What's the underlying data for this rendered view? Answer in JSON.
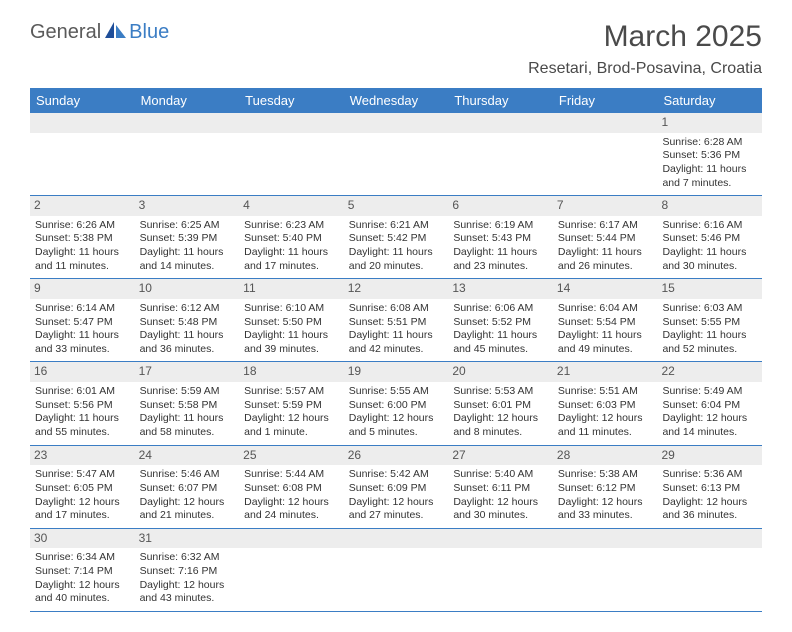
{
  "logo": {
    "text1": "General",
    "text2": "Blue"
  },
  "title": "March 2025",
  "location": "Resetari, Brod-Posavina, Croatia",
  "colors": {
    "header_bg": "#3b7dc4",
    "header_text": "#ffffff",
    "daynum_bg": "#ededed",
    "row_border": "#3b7dc4",
    "text": "#333333",
    "logo_gray": "#5a5a5a",
    "logo_blue": "#3b7dc4",
    "title_color": "#4a4a4a"
  },
  "typography": {
    "cell_fontsize": 10.5,
    "header_fontsize": 13,
    "title_fontsize": 30,
    "location_fontsize": 16
  },
  "dayNames": [
    "Sunday",
    "Monday",
    "Tuesday",
    "Wednesday",
    "Thursday",
    "Friday",
    "Saturday"
  ],
  "weeks": [
    [
      {
        "n": "",
        "sunrise": "",
        "sunset": "",
        "daylight": ""
      },
      {
        "n": "",
        "sunrise": "",
        "sunset": "",
        "daylight": ""
      },
      {
        "n": "",
        "sunrise": "",
        "sunset": "",
        "daylight": ""
      },
      {
        "n": "",
        "sunrise": "",
        "sunset": "",
        "daylight": ""
      },
      {
        "n": "",
        "sunrise": "",
        "sunset": "",
        "daylight": ""
      },
      {
        "n": "",
        "sunrise": "",
        "sunset": "",
        "daylight": ""
      },
      {
        "n": "1",
        "sunrise": "Sunrise: 6:28 AM",
        "sunset": "Sunset: 5:36 PM",
        "daylight": "Daylight: 11 hours and 7 minutes."
      }
    ],
    [
      {
        "n": "2",
        "sunrise": "Sunrise: 6:26 AM",
        "sunset": "Sunset: 5:38 PM",
        "daylight": "Daylight: 11 hours and 11 minutes."
      },
      {
        "n": "3",
        "sunrise": "Sunrise: 6:25 AM",
        "sunset": "Sunset: 5:39 PM",
        "daylight": "Daylight: 11 hours and 14 minutes."
      },
      {
        "n": "4",
        "sunrise": "Sunrise: 6:23 AM",
        "sunset": "Sunset: 5:40 PM",
        "daylight": "Daylight: 11 hours and 17 minutes."
      },
      {
        "n": "5",
        "sunrise": "Sunrise: 6:21 AM",
        "sunset": "Sunset: 5:42 PM",
        "daylight": "Daylight: 11 hours and 20 minutes."
      },
      {
        "n": "6",
        "sunrise": "Sunrise: 6:19 AM",
        "sunset": "Sunset: 5:43 PM",
        "daylight": "Daylight: 11 hours and 23 minutes."
      },
      {
        "n": "7",
        "sunrise": "Sunrise: 6:17 AM",
        "sunset": "Sunset: 5:44 PM",
        "daylight": "Daylight: 11 hours and 26 minutes."
      },
      {
        "n": "8",
        "sunrise": "Sunrise: 6:16 AM",
        "sunset": "Sunset: 5:46 PM",
        "daylight": "Daylight: 11 hours and 30 minutes."
      }
    ],
    [
      {
        "n": "9",
        "sunrise": "Sunrise: 6:14 AM",
        "sunset": "Sunset: 5:47 PM",
        "daylight": "Daylight: 11 hours and 33 minutes."
      },
      {
        "n": "10",
        "sunrise": "Sunrise: 6:12 AM",
        "sunset": "Sunset: 5:48 PM",
        "daylight": "Daylight: 11 hours and 36 minutes."
      },
      {
        "n": "11",
        "sunrise": "Sunrise: 6:10 AM",
        "sunset": "Sunset: 5:50 PM",
        "daylight": "Daylight: 11 hours and 39 minutes."
      },
      {
        "n": "12",
        "sunrise": "Sunrise: 6:08 AM",
        "sunset": "Sunset: 5:51 PM",
        "daylight": "Daylight: 11 hours and 42 minutes."
      },
      {
        "n": "13",
        "sunrise": "Sunrise: 6:06 AM",
        "sunset": "Sunset: 5:52 PM",
        "daylight": "Daylight: 11 hours and 45 minutes."
      },
      {
        "n": "14",
        "sunrise": "Sunrise: 6:04 AM",
        "sunset": "Sunset: 5:54 PM",
        "daylight": "Daylight: 11 hours and 49 minutes."
      },
      {
        "n": "15",
        "sunrise": "Sunrise: 6:03 AM",
        "sunset": "Sunset: 5:55 PM",
        "daylight": "Daylight: 11 hours and 52 minutes."
      }
    ],
    [
      {
        "n": "16",
        "sunrise": "Sunrise: 6:01 AM",
        "sunset": "Sunset: 5:56 PM",
        "daylight": "Daylight: 11 hours and 55 minutes."
      },
      {
        "n": "17",
        "sunrise": "Sunrise: 5:59 AM",
        "sunset": "Sunset: 5:58 PM",
        "daylight": "Daylight: 11 hours and 58 minutes."
      },
      {
        "n": "18",
        "sunrise": "Sunrise: 5:57 AM",
        "sunset": "Sunset: 5:59 PM",
        "daylight": "Daylight: 12 hours and 1 minute."
      },
      {
        "n": "19",
        "sunrise": "Sunrise: 5:55 AM",
        "sunset": "Sunset: 6:00 PM",
        "daylight": "Daylight: 12 hours and 5 minutes."
      },
      {
        "n": "20",
        "sunrise": "Sunrise: 5:53 AM",
        "sunset": "Sunset: 6:01 PM",
        "daylight": "Daylight: 12 hours and 8 minutes."
      },
      {
        "n": "21",
        "sunrise": "Sunrise: 5:51 AM",
        "sunset": "Sunset: 6:03 PM",
        "daylight": "Daylight: 12 hours and 11 minutes."
      },
      {
        "n": "22",
        "sunrise": "Sunrise: 5:49 AM",
        "sunset": "Sunset: 6:04 PM",
        "daylight": "Daylight: 12 hours and 14 minutes."
      }
    ],
    [
      {
        "n": "23",
        "sunrise": "Sunrise: 5:47 AM",
        "sunset": "Sunset: 6:05 PM",
        "daylight": "Daylight: 12 hours and 17 minutes."
      },
      {
        "n": "24",
        "sunrise": "Sunrise: 5:46 AM",
        "sunset": "Sunset: 6:07 PM",
        "daylight": "Daylight: 12 hours and 21 minutes."
      },
      {
        "n": "25",
        "sunrise": "Sunrise: 5:44 AM",
        "sunset": "Sunset: 6:08 PM",
        "daylight": "Daylight: 12 hours and 24 minutes."
      },
      {
        "n": "26",
        "sunrise": "Sunrise: 5:42 AM",
        "sunset": "Sunset: 6:09 PM",
        "daylight": "Daylight: 12 hours and 27 minutes."
      },
      {
        "n": "27",
        "sunrise": "Sunrise: 5:40 AM",
        "sunset": "Sunset: 6:11 PM",
        "daylight": "Daylight: 12 hours and 30 minutes."
      },
      {
        "n": "28",
        "sunrise": "Sunrise: 5:38 AM",
        "sunset": "Sunset: 6:12 PM",
        "daylight": "Daylight: 12 hours and 33 minutes."
      },
      {
        "n": "29",
        "sunrise": "Sunrise: 5:36 AM",
        "sunset": "Sunset: 6:13 PM",
        "daylight": "Daylight: 12 hours and 36 minutes."
      }
    ],
    [
      {
        "n": "30",
        "sunrise": "Sunrise: 6:34 AM",
        "sunset": "Sunset: 7:14 PM",
        "daylight": "Daylight: 12 hours and 40 minutes."
      },
      {
        "n": "31",
        "sunrise": "Sunrise: 6:32 AM",
        "sunset": "Sunset: 7:16 PM",
        "daylight": "Daylight: 12 hours and 43 minutes."
      },
      {
        "n": "",
        "sunrise": "",
        "sunset": "",
        "daylight": ""
      },
      {
        "n": "",
        "sunrise": "",
        "sunset": "",
        "daylight": ""
      },
      {
        "n": "",
        "sunrise": "",
        "sunset": "",
        "daylight": ""
      },
      {
        "n": "",
        "sunrise": "",
        "sunset": "",
        "daylight": ""
      },
      {
        "n": "",
        "sunrise": "",
        "sunset": "",
        "daylight": ""
      }
    ]
  ]
}
